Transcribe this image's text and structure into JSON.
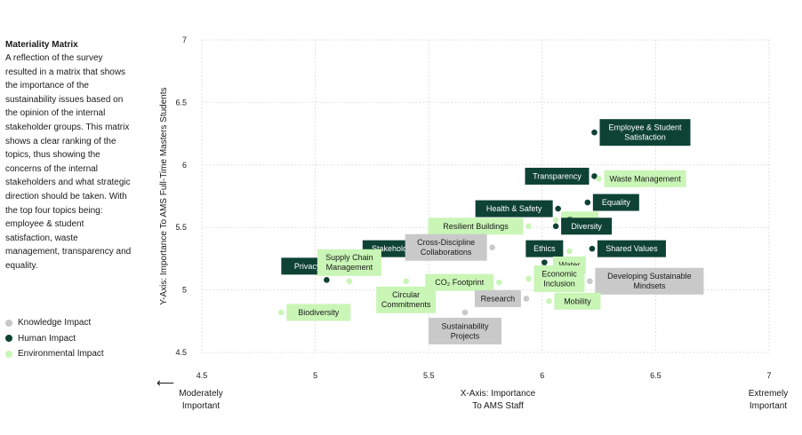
{
  "sidebar": {
    "title": "Materiality Matrix",
    "description": "A reflection of the survey resulted in a matrix that shows the importance of the sustainability issues based on the opinion of the internal stakeholder groups. This matrix shows a clear ranking of the topics, thus showing the concerns of the internal stakeholders and what strategic direction should be taken. With the top four topics being: employee & student satisfaction, waste management, transparency and equality."
  },
  "legend": [
    {
      "name": "Knowledge Impact",
      "color": "#c9c9c9"
    },
    {
      "name": "Human Impact",
      "color": "#0e4234"
    },
    {
      "name": "Environmental Impact",
      "color": "#c9f5b6"
    }
  ],
  "bottom": {
    "left_line1": "Moderately",
    "left_line2": "Important",
    "right_line1": "Extremely",
    "right_line2": "Important",
    "arrow": "⟵"
  },
  "chart_data": {
    "type": "scatter",
    "xlabel_lines": [
      "X-Axis: Importance",
      "To AMS Staff"
    ],
    "ylabel": "Y-Axis: Importance To AMS Full-Time Masters Students",
    "xlim": [
      4.5,
      7
    ],
    "ylim": [
      4.5,
      7
    ],
    "xticks": [
      "4.5",
      "5",
      "5.5",
      "6",
      "6.5",
      "7"
    ],
    "yticks": [
      "4.5",
      "5",
      "5.5",
      "6",
      "6.5",
      "7"
    ],
    "grid": true,
    "category_colors": {
      "knowledge": {
        "dot": "#c9c9c9",
        "box": "#c9c9c9",
        "text": "#1a1a1a"
      },
      "human": {
        "dot": "#0e4234",
        "box": "#0e4234",
        "text": "#ffffff"
      },
      "environmental": {
        "dot": "#c9f5b6",
        "box": "#c9f5b6",
        "text": "#1a1a1a"
      }
    },
    "points": [
      {
        "label": [
          "Employee & Student",
          "Satisfaction"
        ],
        "x": 6.23,
        "y": 6.26,
        "category": "human",
        "side": "right"
      },
      {
        "label": [
          "Transparency"
        ],
        "x": 6.23,
        "y": 5.91,
        "category": "human",
        "side": "left"
      },
      {
        "label": [
          "Waste Management"
        ],
        "x": 6.25,
        "y": 5.89,
        "category": "environmental",
        "side": "right"
      },
      {
        "label": [
          "Equality"
        ],
        "x": 6.2,
        "y": 5.7,
        "category": "human",
        "side": "right"
      },
      {
        "label": [
          "Health & Safety"
        ],
        "x": 6.07,
        "y": 5.65,
        "category": "human",
        "side": "left"
      },
      {
        "label": [
          "Energy"
        ],
        "x": 6.06,
        "y": 5.56,
        "category": "environmental",
        "side": "right"
      },
      {
        "label": [
          "Resilient Buildings"
        ],
        "x": 5.94,
        "y": 5.51,
        "category": "environmental",
        "side": "left"
      },
      {
        "label": [
          "Diversity"
        ],
        "x": 6.06,
        "y": 5.51,
        "category": "human",
        "side": "right"
      },
      {
        "label": [
          "Stakeholder Engagement"
        ],
        "x": 5.71,
        "y": 5.33,
        "category": "human",
        "side": "left"
      },
      {
        "label": [
          "Cross-Discipline",
          "Collaborations"
        ],
        "x": 5.78,
        "y": 5.34,
        "category": "knowledge",
        "side": "left"
      },
      {
        "label": [
          "Ethics"
        ],
        "x": 6.01,
        "y": 5.22,
        "category": "human",
        "side": "above"
      },
      {
        "label": [
          "Shared Values"
        ],
        "x": 6.22,
        "y": 5.33,
        "category": "human",
        "side": "right"
      },
      {
        "label": [
          "Water"
        ],
        "x": 6.12,
        "y": 5.31,
        "category": "environmental",
        "side": "below"
      },
      {
        "label": [
          "Privacy & Security"
        ],
        "x": 5.05,
        "y": 5.08,
        "category": "human",
        "side": "above"
      },
      {
        "label": [
          "Supply Chain",
          "Management"
        ],
        "x": 5.15,
        "y": 5.07,
        "category": "environmental",
        "side": "above"
      },
      {
        "label": [
          "Circular",
          "Commitments"
        ],
        "x": 5.4,
        "y": 5.07,
        "category": "environmental",
        "side": "below"
      },
      {
        "label": [
          "CO₂ Footprint"
        ],
        "x": 5.81,
        "y": 5.06,
        "category": "environmental",
        "side": "left"
      },
      {
        "label": [
          "Economic",
          "Inclusion"
        ],
        "x": 5.94,
        "y": 5.09,
        "category": "environmental",
        "side": "right"
      },
      {
        "label": [
          "Developing Sustainable",
          "Mindsets"
        ],
        "x": 6.21,
        "y": 5.07,
        "category": "knowledge",
        "side": "right"
      },
      {
        "label": [
          "Research"
        ],
        "x": 5.93,
        "y": 4.93,
        "category": "knowledge",
        "side": "left"
      },
      {
        "label": [
          "Mobility"
        ],
        "x": 6.03,
        "y": 4.91,
        "category": "environmental",
        "side": "right"
      },
      {
        "label": [
          "Biodiversity"
        ],
        "x": 4.85,
        "y": 4.82,
        "category": "environmental",
        "side": "right"
      },
      {
        "label": [
          "Sustainability",
          "Projects"
        ],
        "x": 5.66,
        "y": 4.82,
        "category": "knowledge",
        "side": "below"
      }
    ]
  }
}
